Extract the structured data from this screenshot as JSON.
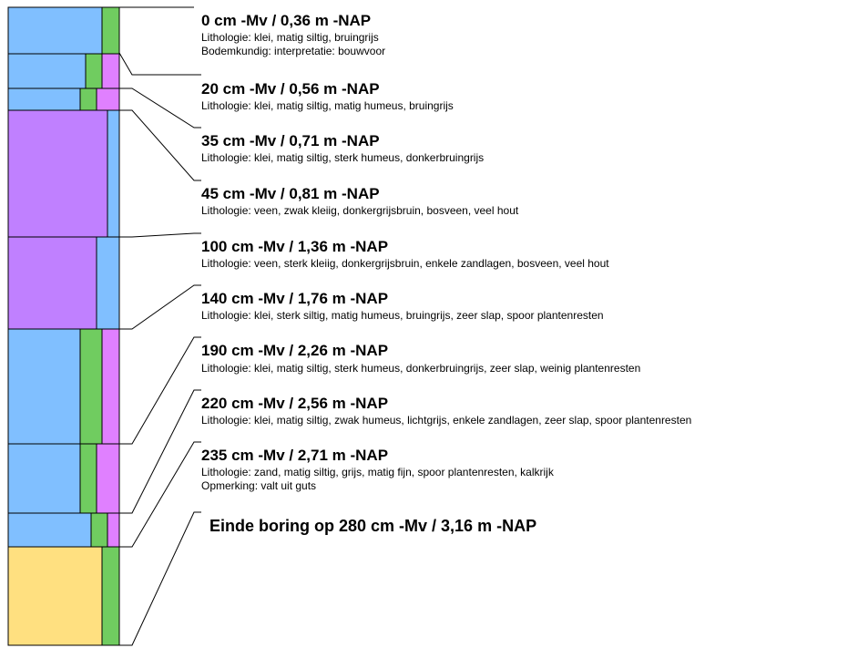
{
  "colors": {
    "clay": "#80bfff",
    "peat": "#c080ff",
    "sand": "#ffe080",
    "silt": "#70cc60",
    "humus": "#e080ff",
    "line": "#000000",
    "background": "#ffffff"
  },
  "layers": [
    {
      "title": "0 cm -Mv / 0,36 m -NAP",
      "lines": [
        "Lithologie: klei, matig siltig, bruingrijs",
        "Bodemkundig: interpretatie: bouwvoor"
      ],
      "lithology": "clay",
      "secondary": [
        "silt"
      ]
    },
    {
      "title": "20 cm -Mv / 0,56 m -NAP",
      "lines": [
        "Lithologie: klei, matig siltig, matig humeus, bruingrijs"
      ],
      "lithology": "clay",
      "secondary": [
        "silt",
        "humus"
      ]
    },
    {
      "title": "35 cm -Mv / 0,71 m -NAP",
      "lines": [
        "Lithologie: klei, matig siltig, sterk humeus, donkerbruingrijs"
      ],
      "lithology": "clay",
      "secondary": [
        "silt",
        "humus"
      ]
    },
    {
      "title": "45 cm -Mv / 0,81 m -NAP",
      "lines": [
        "Lithologie: veen, zwak kleiig, donkergrijsbruin, bosveen, veel hout"
      ],
      "lithology": "peat",
      "secondary": [
        "clay"
      ]
    },
    {
      "title": "100 cm -Mv / 1,36 m -NAP",
      "lines": [
        "Lithologie: veen, sterk kleiig, donkergrijsbruin, enkele zandlagen, bosveen, veel hout"
      ],
      "lithology": "peat",
      "secondary": [
        "clay"
      ]
    },
    {
      "title": "140 cm -Mv / 1,76 m -NAP",
      "lines": [
        "Lithologie: klei, sterk siltig, matig humeus, bruingrijs, zeer slap, spoor plantenresten"
      ],
      "lithology": "clay",
      "secondary": [
        "silt",
        "humus"
      ]
    },
    {
      "title": "190 cm -Mv / 2,26 m -NAP",
      "lines": [
        "Lithologie: klei, matig siltig, sterk humeus, donkerbruingrijs, zeer slap, weinig plantenresten"
      ],
      "lithology": "clay",
      "secondary": [
        "silt",
        "humus"
      ]
    },
    {
      "title": "220 cm -Mv / 2,56 m -NAP",
      "lines": [
        "Lithologie: klei, matig siltig, zwak humeus, lichtgrijs, enkele zandlagen, zeer slap, spoor plantenresten"
      ],
      "lithology": "clay",
      "secondary": [
        "silt",
        "humus"
      ]
    },
    {
      "title": "235 cm -Mv / 2,71 m -NAP",
      "lines": [
        "Lithologie: zand, matig siltig, grijs, matig fijn, spoor plantenresten, kalkrijk",
        "Opmerking: valt uit guts"
      ],
      "lithology": "sand",
      "secondary": [
        "silt"
      ]
    }
  ],
  "end": {
    "title": "Einde boring op 280 cm -Mv / 3,16 m -NAP"
  }
}
